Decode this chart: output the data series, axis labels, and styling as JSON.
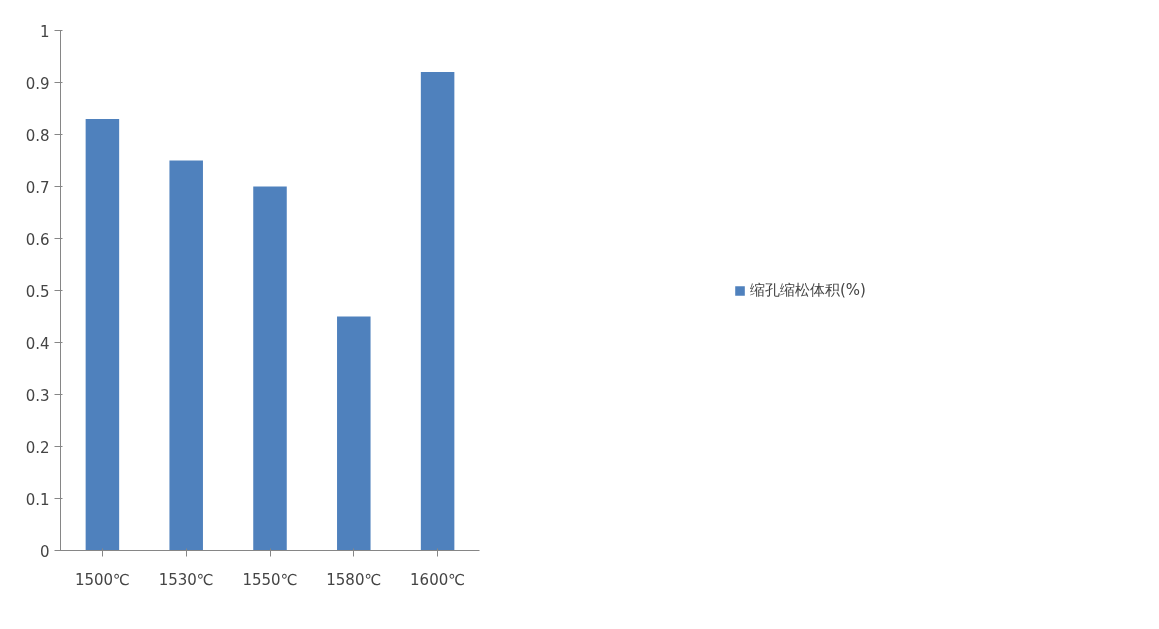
{
  "chart_data": {
    "type": "bar",
    "categories": [
      "1500℃",
      "1530℃",
      "1550℃",
      "1580℃",
      "1600℃"
    ],
    "series": [
      {
        "name": "缩孔缩松体积(%)",
        "color": "#4f81bd",
        "values": [
          0.83,
          0.75,
          0.7,
          0.45,
          0.92
        ]
      }
    ],
    "ylim": [
      0,
      1
    ],
    "yticks": [
      0,
      0.1,
      0.2,
      0.3,
      0.4,
      0.5,
      0.6,
      0.7,
      0.8,
      0.9,
      1
    ],
    "grid": false,
    "legend": "right"
  }
}
